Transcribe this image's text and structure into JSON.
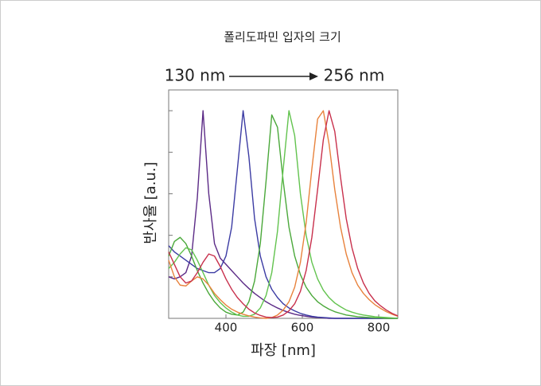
{
  "chart_data": {
    "type": "line",
    "title": "폴리도파민 입자의 크기",
    "annotations": [
      "130 nm",
      "256 nm"
    ],
    "y_label": "반사율  [a.u.]",
    "x_label": "파장  [nm]",
    "xlim": [
      250,
      850
    ],
    "xticks": [
      400,
      600,
      800
    ],
    "ylim": [
      0,
      5.5
    ],
    "yticks": [
      1,
      2,
      3,
      4,
      5
    ],
    "x": [
      250,
      265,
      280,
      295,
      310,
      325,
      340,
      355,
      370,
      385,
      400,
      415,
      430,
      445,
      460,
      475,
      490,
      505,
      520,
      535,
      550,
      565,
      580,
      595,
      610,
      625,
      640,
      655,
      670,
      685,
      700,
      715,
      730,
      745,
      760,
      775,
      790,
      805,
      820,
      835,
      850
    ],
    "series": [
      {
        "color": "#5b2a86",
        "values": [
          1.0,
          0.95,
          1.0,
          1.1,
          1.5,
          2.9,
          5.0,
          3.0,
          1.8,
          1.45,
          1.3,
          1.15,
          1.0,
          0.85,
          0.72,
          0.6,
          0.5,
          0.4,
          0.32,
          0.25,
          0.19,
          0.14,
          0.1,
          0.07,
          0.05,
          0.03,
          0.02,
          0.01,
          0,
          0,
          0,
          0,
          0,
          0,
          0,
          0,
          0,
          0,
          0,
          0,
          0
        ]
      },
      {
        "color": "#3b3ba3",
        "values": [
          1.75,
          1.6,
          1.5,
          1.4,
          1.3,
          1.2,
          1.15,
          1.1,
          1.1,
          1.2,
          1.5,
          2.2,
          3.6,
          5.0,
          3.9,
          2.4,
          1.5,
          1.0,
          0.7,
          0.5,
          0.35,
          0.25,
          0.18,
          0.12,
          0.08,
          0.05,
          0.03,
          0.02,
          0.01,
          0,
          0,
          0,
          0,
          0,
          0,
          0,
          0,
          0,
          0,
          0,
          0
        ]
      },
      {
        "color": "#4aa83a",
        "values": [
          1.5,
          1.85,
          1.95,
          1.8,
          1.5,
          1.15,
          0.85,
          0.6,
          0.4,
          0.25,
          0.15,
          0.1,
          0.08,
          0.15,
          0.4,
          0.9,
          1.8,
          3.3,
          4.9,
          4.6,
          3.3,
          2.2,
          1.5,
          1.05,
          0.75,
          0.55,
          0.4,
          0.3,
          0.22,
          0.16,
          0.12,
          0.08,
          0.06,
          0.04,
          0.03,
          0.02,
          0.01,
          0.01,
          0,
          0,
          0
        ]
      },
      {
        "color": "#62c34e",
        "values": [
          1.2,
          1.35,
          1.55,
          1.7,
          1.65,
          1.4,
          1.1,
          0.8,
          0.55,
          0.38,
          0.25,
          0.15,
          0.08,
          0.05,
          0.05,
          0.1,
          0.25,
          0.55,
          1.1,
          2.1,
          3.6,
          5.0,
          4.4,
          3.0,
          2.0,
          1.35,
          0.95,
          0.68,
          0.5,
          0.37,
          0.28,
          0.2,
          0.15,
          0.11,
          0.08,
          0.06,
          0.04,
          0.03,
          0.02,
          0.01,
          0
        ]
      },
      {
        "color": "#e8823c",
        "values": [
          1.4,
          1.0,
          0.8,
          0.78,
          0.9,
          1.0,
          0.95,
          0.8,
          0.6,
          0.45,
          0.32,
          0.22,
          0.15,
          0.1,
          0.06,
          0.03,
          0.01,
          0,
          0.02,
          0.08,
          0.2,
          0.4,
          0.75,
          1.35,
          2.3,
          3.6,
          4.8,
          5.0,
          4.2,
          3.1,
          2.2,
          1.55,
          1.1,
          0.8,
          0.6,
          0.45,
          0.33,
          0.24,
          0.16,
          0.1,
          0.05
        ]
      },
      {
        "color": "#c8304c",
        "values": [
          1.6,
          1.3,
          1.0,
          0.85,
          0.9,
          1.1,
          1.35,
          1.55,
          1.5,
          1.25,
          0.95,
          0.7,
          0.5,
          0.35,
          0.22,
          0.13,
          0.07,
          0.03,
          0.02,
          0.03,
          0.08,
          0.18,
          0.35,
          0.65,
          1.15,
          1.95,
          3.1,
          4.3,
          5.0,
          4.5,
          3.4,
          2.4,
          1.7,
          1.2,
          0.85,
          0.6,
          0.42,
          0.3,
          0.2,
          0.12,
          0.06
        ]
      }
    ]
  }
}
